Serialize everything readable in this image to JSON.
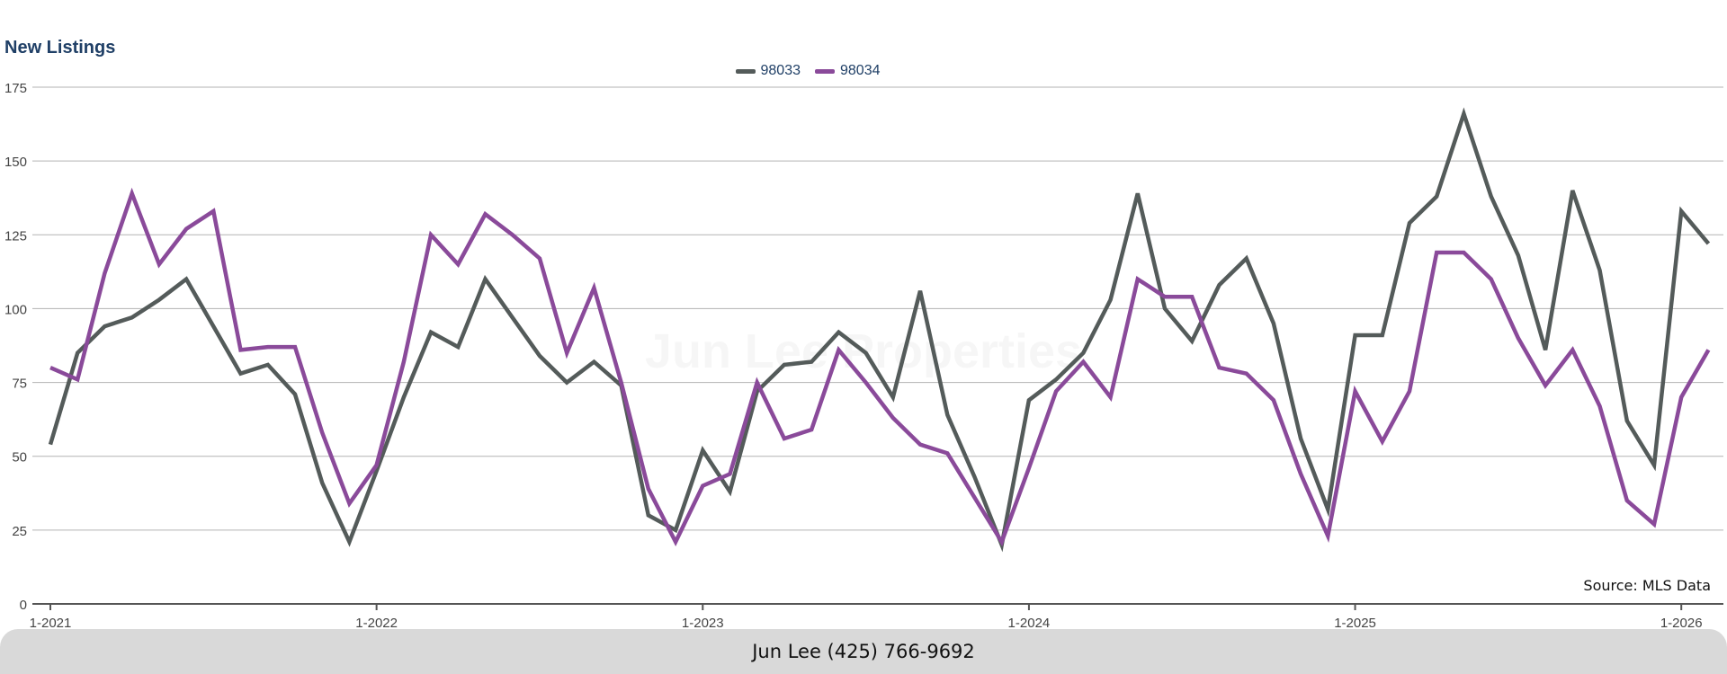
{
  "chart_data": {
    "type": "line",
    "title": "New Listings",
    "watermark": "Jun Lee Properties",
    "source": "Source: MLS Data",
    "footer": "Jun Lee (425) 766-9692",
    "ylim": [
      0,
      175
    ],
    "y_ticks": [
      0,
      25,
      50,
      75,
      100,
      125,
      150,
      175
    ],
    "x_tick_labels": [
      "1-2021",
      "1-2022",
      "1-2023",
      "1-2024",
      "1-2025",
      "1-2026"
    ],
    "legend_position": "top-center",
    "grid": true,
    "x_start": "1-2021",
    "x_interval": "month",
    "series": [
      {
        "name": "98033",
        "color": "#545b5a",
        "values": [
          54,
          85,
          94,
          97,
          103,
          110,
          94,
          78,
          81,
          71,
          41,
          21,
          45,
          70,
          92,
          87,
          110,
          97,
          84,
          75,
          82,
          74,
          30,
          25,
          52,
          38,
          72,
          81,
          82,
          92,
          85,
          70,
          106,
          64,
          43,
          20,
          69,
          76,
          85,
          103,
          139,
          100,
          89,
          108,
          117,
          95,
          56,
          32,
          91,
          91,
          129,
          138,
          166,
          138,
          118,
          86,
          140,
          113,
          62,
          47,
          133,
          122
        ]
      },
      {
        "name": "98034",
        "color": "#8a4a9a",
        "values": [
          80,
          76,
          112,
          139,
          115,
          127,
          133,
          86,
          87,
          87,
          58,
          34,
          47,
          82,
          125,
          115,
          132,
          125,
          117,
          85,
          107,
          75,
          39,
          21,
          40,
          44,
          75,
          56,
          59,
          86,
          75,
          63,
          54,
          51,
          36,
          21,
          46,
          72,
          82,
          70,
          110,
          104,
          104,
          80,
          78,
          69,
          44,
          23,
          72,
          55,
          72,
          119,
          119,
          110,
          90,
          74,
          86,
          67,
          35,
          27,
          70,
          86
        ]
      }
    ]
  }
}
